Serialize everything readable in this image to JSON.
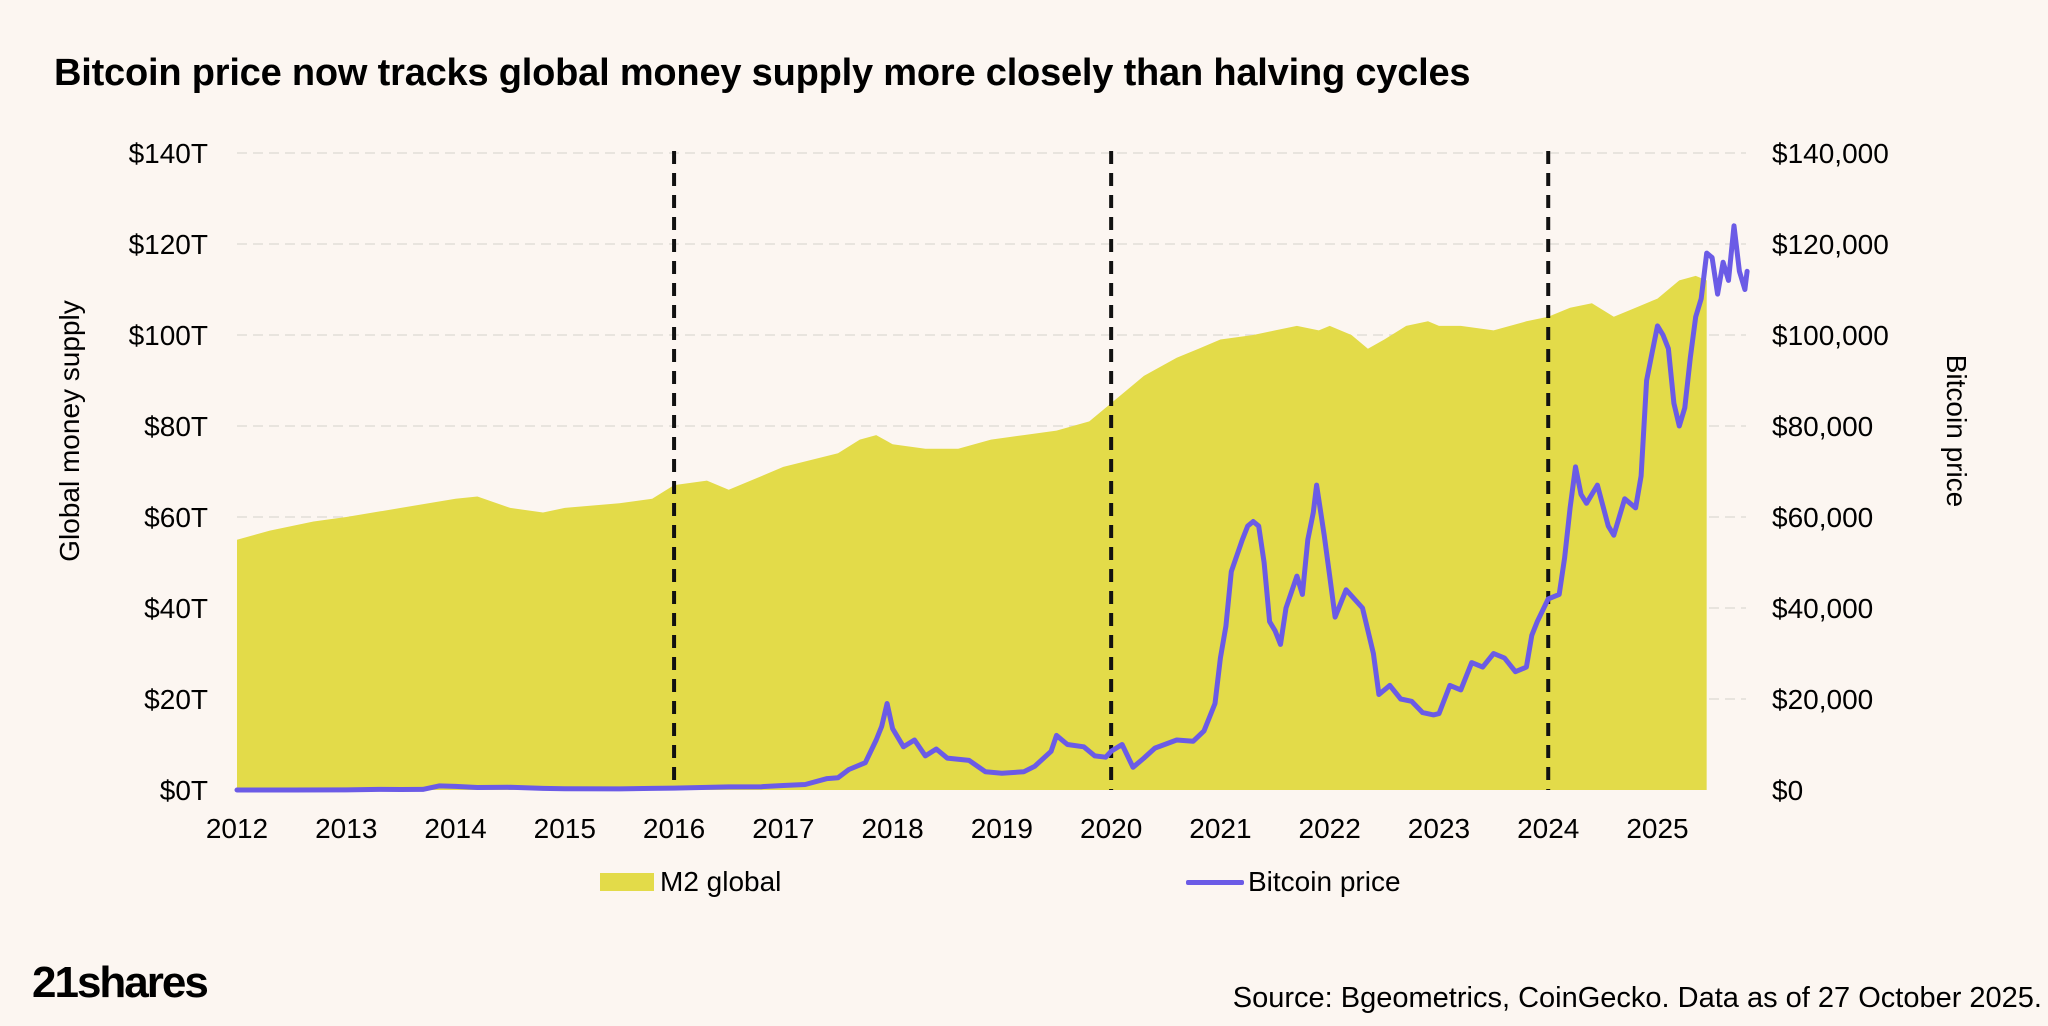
{
  "title": "Bitcoin price now tracks global money supply more closely than halving cycles",
  "source": "Source: Bgeometrics, CoinGecko. Data as of 27 October 2025.",
  "logo": "21shares",
  "chart_data": {
    "type": "area+line",
    "title": "Bitcoin price now tracks global money supply more closely than halving cycles",
    "ylabel_left": "Global money supply",
    "ylabel_right": "Bitcoin price",
    "x_range": [
      2012,
      2025.45
    ],
    "x_ticks": [
      2012,
      2013,
      2014,
      2015,
      2016,
      2017,
      2018,
      2019,
      2020,
      2021,
      2022,
      2023,
      2024,
      2025
    ],
    "y_left": {
      "range": [
        0,
        140
      ],
      "ticks": [
        0,
        20,
        40,
        60,
        80,
        100,
        120,
        140
      ],
      "tick_labels": [
        "$0T",
        "$20T",
        "$40T",
        "$60T",
        "$80T",
        "$100T",
        "$120T",
        "$140T"
      ]
    },
    "y_right": {
      "range": [
        0,
        140000
      ],
      "ticks": [
        0,
        20000,
        40000,
        60000,
        80000,
        100000,
        120000,
        140000
      ],
      "tick_labels": [
        "$0",
        "$20,000",
        "$40,000",
        "$60,000",
        "$80,000",
        "$100,000",
        "$120,000",
        "$140,000"
      ]
    },
    "halving_lines": [
      2016.0,
      2020.0,
      2024.0
    ],
    "gridlines": true,
    "legend_position": "bottom",
    "colors": {
      "m2": "#e3db49",
      "btc": "#6b5be6",
      "grid": "#e2ddd8",
      "halving": "#111111",
      "background": "#fcf6f1"
    },
    "series": [
      {
        "name": "M2 global",
        "type": "area",
        "axis": "left",
        "points": [
          [
            2012.0,
            55
          ],
          [
            2012.3,
            57
          ],
          [
            2012.7,
            59
          ],
          [
            2013.0,
            60
          ],
          [
            2013.5,
            62
          ],
          [
            2014.0,
            64
          ],
          [
            2014.2,
            64.5
          ],
          [
            2014.5,
            62
          ],
          [
            2014.8,
            61
          ],
          [
            2015.0,
            62
          ],
          [
            2015.5,
            63
          ],
          [
            2015.8,
            64
          ],
          [
            2016.0,
            67
          ],
          [
            2016.3,
            68
          ],
          [
            2016.5,
            66
          ],
          [
            2016.8,
            69
          ],
          [
            2017.0,
            71
          ],
          [
            2017.5,
            74
          ],
          [
            2017.7,
            77
          ],
          [
            2017.85,
            78
          ],
          [
            2018.0,
            76
          ],
          [
            2018.3,
            75
          ],
          [
            2018.6,
            75
          ],
          [
            2018.9,
            77
          ],
          [
            2019.2,
            78
          ],
          [
            2019.5,
            79
          ],
          [
            2019.8,
            81
          ],
          [
            2020.0,
            85
          ],
          [
            2020.3,
            91
          ],
          [
            2020.6,
            95
          ],
          [
            2020.8,
            97
          ],
          [
            2021.0,
            99
          ],
          [
            2021.3,
            100
          ],
          [
            2021.5,
            101
          ],
          [
            2021.7,
            102
          ],
          [
            2021.9,
            101
          ],
          [
            2022.0,
            102
          ],
          [
            2022.2,
            100
          ],
          [
            2022.35,
            97
          ],
          [
            2022.5,
            99
          ],
          [
            2022.7,
            102
          ],
          [
            2022.9,
            103
          ],
          [
            2023.0,
            102
          ],
          [
            2023.2,
            102
          ],
          [
            2023.5,
            101
          ],
          [
            2023.8,
            103
          ],
          [
            2024.0,
            104
          ],
          [
            2024.2,
            106
          ],
          [
            2024.4,
            107
          ],
          [
            2024.6,
            104
          ],
          [
            2024.8,
            106
          ],
          [
            2025.0,
            108
          ],
          [
            2025.2,
            112
          ],
          [
            2025.35,
            113
          ],
          [
            2025.45,
            112
          ]
        ]
      },
      {
        "name": "Bitcoin price",
        "type": "line",
        "axis": "right",
        "points": [
          [
            2012.0,
            6
          ],
          [
            2012.5,
            7
          ],
          [
            2013.0,
            20
          ],
          [
            2013.3,
            140
          ],
          [
            2013.5,
            110
          ],
          [
            2013.7,
            130
          ],
          [
            2013.85,
            900
          ],
          [
            2014.0,
            800
          ],
          [
            2014.2,
            550
          ],
          [
            2014.5,
            600
          ],
          [
            2014.8,
            350
          ],
          [
            2015.0,
            280
          ],
          [
            2015.5,
            250
          ],
          [
            2015.8,
            350
          ],
          [
            2016.0,
            420
          ],
          [
            2016.5,
            680
          ],
          [
            2016.8,
            730
          ],
          [
            2017.0,
            1000
          ],
          [
            2017.2,
            1200
          ],
          [
            2017.4,
            2500
          ],
          [
            2017.5,
            2700
          ],
          [
            2017.6,
            4500
          ],
          [
            2017.75,
            6000
          ],
          [
            2017.85,
            11000
          ],
          [
            2017.9,
            14000
          ],
          [
            2017.95,
            19000
          ],
          [
            2018.0,
            13500
          ],
          [
            2018.1,
            9500
          ],
          [
            2018.2,
            11000
          ],
          [
            2018.3,
            7500
          ],
          [
            2018.4,
            9000
          ],
          [
            2018.5,
            7000
          ],
          [
            2018.7,
            6500
          ],
          [
            2018.85,
            4000
          ],
          [
            2019.0,
            3700
          ],
          [
            2019.2,
            4000
          ],
          [
            2019.3,
            5200
          ],
          [
            2019.45,
            8500
          ],
          [
            2019.5,
            12000
          ],
          [
            2019.6,
            10000
          ],
          [
            2019.75,
            9500
          ],
          [
            2019.85,
            7500
          ],
          [
            2019.95,
            7200
          ],
          [
            2020.0,
            8500
          ],
          [
            2020.1,
            10000
          ],
          [
            2020.2,
            5000
          ],
          [
            2020.3,
            7000
          ],
          [
            2020.4,
            9200
          ],
          [
            2020.6,
            11000
          ],
          [
            2020.75,
            10700
          ],
          [
            2020.85,
            13000
          ],
          [
            2020.95,
            19000
          ],
          [
            2021.0,
            29000
          ],
          [
            2021.05,
            36000
          ],
          [
            2021.1,
            48000
          ],
          [
            2021.2,
            55000
          ],
          [
            2021.25,
            58000
          ],
          [
            2021.3,
            59000
          ],
          [
            2021.35,
            58000
          ],
          [
            2021.4,
            50000
          ],
          [
            2021.45,
            37000
          ],
          [
            2021.5,
            35000
          ],
          [
            2021.55,
            32000
          ],
          [
            2021.6,
            40000
          ],
          [
            2021.7,
            47000
          ],
          [
            2021.75,
            43000
          ],
          [
            2021.8,
            55000
          ],
          [
            2021.85,
            61000
          ],
          [
            2021.88,
            67000
          ],
          [
            2021.95,
            56000
          ],
          [
            2022.0,
            47000
          ],
          [
            2022.05,
            38000
          ],
          [
            2022.15,
            44000
          ],
          [
            2022.3,
            40000
          ],
          [
            2022.4,
            30000
          ],
          [
            2022.45,
            21000
          ],
          [
            2022.55,
            23000
          ],
          [
            2022.65,
            20000
          ],
          [
            2022.75,
            19500
          ],
          [
            2022.85,
            17000
          ],
          [
            2022.95,
            16500
          ],
          [
            2023.0,
            16800
          ],
          [
            2023.1,
            23000
          ],
          [
            2023.2,
            22000
          ],
          [
            2023.3,
            28000
          ],
          [
            2023.4,
            27000
          ],
          [
            2023.5,
            30000
          ],
          [
            2023.6,
            29000
          ],
          [
            2023.7,
            26000
          ],
          [
            2023.8,
            27000
          ],
          [
            2023.85,
            34000
          ],
          [
            2023.9,
            37000
          ],
          [
            2024.0,
            42000
          ],
          [
            2024.1,
            43000
          ],
          [
            2024.15,
            51000
          ],
          [
            2024.2,
            62000
          ],
          [
            2024.25,
            71000
          ],
          [
            2024.3,
            65000
          ],
          [
            2024.35,
            63000
          ],
          [
            2024.45,
            67000
          ],
          [
            2024.55,
            58000
          ],
          [
            2024.6,
            56000
          ],
          [
            2024.7,
            64000
          ],
          [
            2024.8,
            62000
          ],
          [
            2024.85,
            69000
          ],
          [
            2024.9,
            90000
          ],
          [
            2024.95,
            96000
          ],
          [
            2025.0,
            102000
          ],
          [
            2025.05,
            100000
          ],
          [
            2025.1,
            97000
          ],
          [
            2025.15,
            85000
          ],
          [
            2025.2,
            80000
          ],
          [
            2025.25,
            84000
          ],
          [
            2025.3,
            95000
          ],
          [
            2025.35,
            104000
          ],
          [
            2025.4,
            108000
          ],
          [
            2025.45,
            118000
          ],
          [
            2025.5,
            117000
          ],
          [
            2025.55,
            109000
          ],
          [
            2025.6,
            116000
          ],
          [
            2025.65,
            112000
          ],
          [
            2025.7,
            124000
          ],
          [
            2025.75,
            114000
          ],
          [
            2025.8,
            110000
          ],
          [
            2025.82,
            114000
          ]
        ]
      }
    ]
  },
  "legend": [
    {
      "label": "M2 global",
      "color": "#e3db49",
      "kind": "area"
    },
    {
      "label": "Bitcoin price",
      "color": "#6b5be6",
      "kind": "line"
    }
  ]
}
